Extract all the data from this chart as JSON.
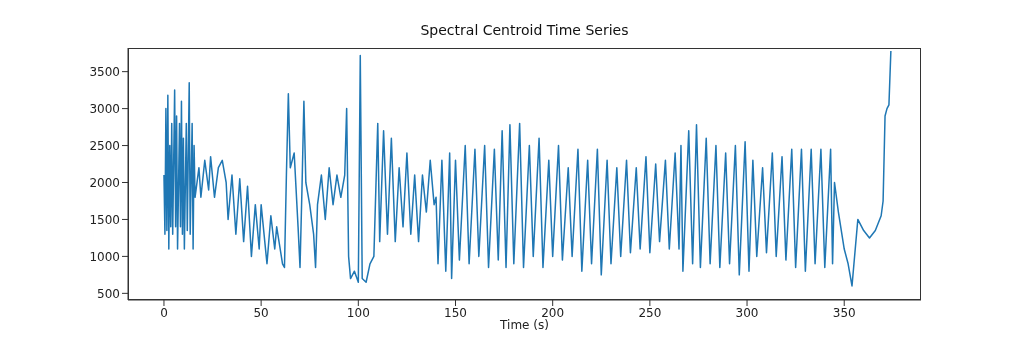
{
  "chart_data": {
    "type": "line",
    "title": "Spectral Centroid Time Series",
    "xlabel": "Time (s)",
    "x": [
      0,
      0.5,
      1,
      1.5,
      2,
      2.5,
      3,
      3.5,
      4,
      4.5,
      5.5,
      6,
      6.5,
      7,
      8,
      8.5,
      9,
      9.5,
      10,
      10.5,
      11.5,
      12,
      13,
      13.5,
      14.5,
      15,
      15.5,
      16,
      18,
      19,
      21,
      23,
      24,
      26,
      28,
      30,
      32,
      33,
      35,
      37,
      39,
      41,
      43,
      45,
      47,
      49,
      50,
      53,
      55,
      57,
      58,
      61,
      62,
      63,
      64,
      65,
      67,
      69,
      70,
      71,
      72,
      73,
      75,
      77,
      78,
      79,
      81,
      83,
      85,
      87,
      89,
      91,
      93,
      94,
      95,
      96,
      98,
      100,
      101,
      102,
      104,
      106,
      108,
      109,
      110,
      111,
      113,
      115,
      117,
      119,
      121,
      123,
      125,
      127,
      129,
      131,
      133,
      135,
      137,
      139,
      140,
      141,
      143,
      145,
      147,
      148,
      150,
      152,
      155,
      157,
      160,
      162,
      165,
      167,
      170,
      172,
      174,
      176,
      178,
      180,
      183,
      185,
      188,
      190,
      193,
      195,
      198,
      200,
      203,
      205,
      208,
      210,
      213,
      215,
      218,
      220,
      223,
      225,
      228,
      230,
      233,
      235,
      238,
      240,
      243,
      245,
      248,
      250,
      253,
      255,
      258,
      260,
      263,
      265,
      266,
      267,
      270,
      272,
      274,
      276,
      279,
      281,
      284,
      286,
      289,
      291,
      294,
      296,
      299,
      301,
      303,
      305,
      308,
      310,
      313,
      315,
      318,
      320,
      323,
      325,
      328,
      330,
      333,
      335,
      338,
      340,
      343,
      344,
      345,
      347,
      350,
      352,
      354,
      355,
      357,
      360,
      363,
      366,
      369,
      370,
      371,
      372,
      373,
      374
    ],
    "series": [
      {
        "color": "#1f77b4",
        "values": [
          2100,
          1300,
          3000,
          1350,
          3180,
          1100,
          2500,
          1400,
          2800,
          1300,
          3250,
          1400,
          2900,
          1100,
          2800,
          1400,
          3100,
          1300,
          2600,
          1100,
          2800,
          1350,
          3350,
          1300,
          2800,
          1100,
          2500,
          1800,
          2200,
          1800,
          2300,
          1900,
          2350,
          1800,
          2200,
          2300,
          2000,
          1500,
          2100,
          1300,
          2050,
          1200,
          1950,
          1000,
          1700,
          1100,
          1700,
          900,
          1550,
          1100,
          1400,
          900,
          850,
          2100,
          3200,
          2200,
          2400,
          1400,
          850,
          1900,
          3100,
          2000,
          1700,
          1300,
          850,
          1700,
          2100,
          1500,
          2200,
          1700,
          2100,
          1800,
          2100,
          3000,
          1000,
          700,
          800,
          650,
          3720,
          700,
          650,
          900,
          1000,
          1900,
          2800,
          1200,
          2700,
          1300,
          2600,
          1200,
          2200,
          1400,
          2400,
          1300,
          2100,
          1200,
          2100,
          1600,
          2300,
          1700,
          1800,
          900,
          2300,
          800,
          2400,
          700,
          2300,
          950,
          2500,
          900,
          2450,
          1000,
          2500,
          850,
          2450,
          950,
          2700,
          850,
          2780,
          900,
          2800,
          850,
          2500,
          1000,
          2600,
          850,
          2300,
          1000,
          2500,
          950,
          2200,
          1000,
          2450,
          800,
          2300,
          900,
          2450,
          750,
          2300,
          900,
          2200,
          1000,
          2300,
          1050,
          2200,
          1100,
          2350,
          1050,
          2250,
          1200,
          2300,
          1100,
          2400,
          1100,
          2500,
          800,
          2700,
          900,
          2780,
          850,
          2600,
          900,
          2500,
          850,
          2400,
          900,
          2500,
          750,
          2550,
          800,
          2300,
          1000,
          2200,
          1050,
          2400,
          1000,
          2350,
          950,
          2450,
          850,
          2450,
          800,
          2450,
          900,
          2450,
          850,
          2450,
          900,
          2000,
          1600,
          1100,
          900,
          600,
          900,
          1500,
          1350,
          1250,
          1350,
          1550,
          1750,
          2900,
          3000,
          3050,
          3780
        ]
      }
    ],
    "xlim": [
      -18.5,
      389.5
    ],
    "ylim": [
      410,
      3820
    ],
    "xticks": [
      0,
      50,
      100,
      150,
      200,
      250,
      300,
      350
    ],
    "yticks": [
      500,
      1000,
      1500,
      2000,
      2500,
      3000,
      3500
    ],
    "grid": false,
    "legend": false,
    "marker": "none",
    "line_style": "solid"
  }
}
